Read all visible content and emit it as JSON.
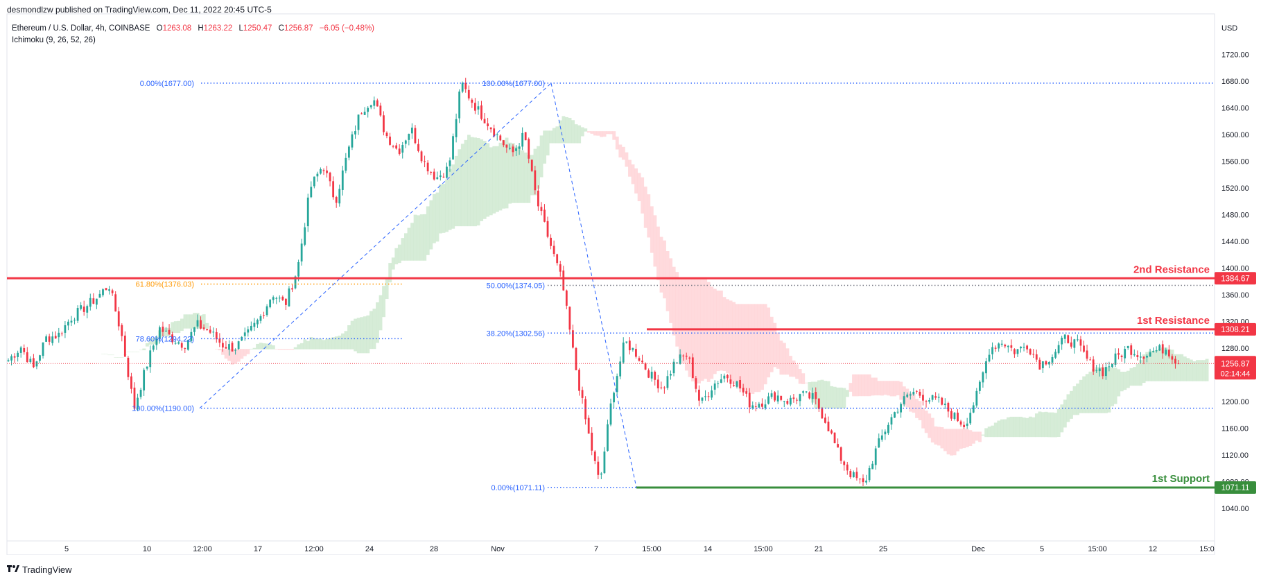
{
  "publisher_line": "desmondlzw published on TradingView.com, Dec 11, 2022 20:45 UTC-5",
  "header": {
    "symbol": "Ethereum / U.S. Dollar, 4h, COINBASE",
    "open_label": "O",
    "open": "1263.08",
    "high_label": "H",
    "high": "1263.22",
    "low_label": "L",
    "low": "1250.47",
    "close_label": "C",
    "close": "1256.87",
    "change": "−6.05 (−0.48%)"
  },
  "indicator": "Ichimoku (9, 26, 52, 26)",
  "footer_brand": "TradingView",
  "colors": {
    "up": "#26a69a",
    "down": "#f23645",
    "fib": "#2962ff",
    "fib_orange": "#ff9800",
    "resistance": "#f23645",
    "support": "#388e3c",
    "cloud_green": "#c8e6c9",
    "cloud_red": "#ffcdd2",
    "text": "#131722",
    "muted": "#787b86"
  },
  "chart_data": {
    "type": "candlestick",
    "currency_label": "USD",
    "y_axis": {
      "min": 1020,
      "max": 1750,
      "ticks": [
        "1720.00",
        "1680.00",
        "1640.00",
        "1600.00",
        "1560.00",
        "1520.00",
        "1480.00",
        "1440.00",
        "1400.00",
        "1360.00",
        "1320.00",
        "1280.00",
        "1240.00",
        "1200.00",
        "1160.00",
        "1120.00",
        "1080.00",
        "1040.00"
      ]
    },
    "x_axis": {
      "ticks": [
        "5",
        "10",
        "12:00",
        "17",
        "12:00",
        "24",
        "28",
        "Nov",
        "7",
        "15:00",
        "14",
        "15:00",
        "21",
        "25",
        "Dec",
        "5",
        "15:00",
        "12",
        "15:0"
      ]
    },
    "levels": [
      {
        "name": "2nd Resistance",
        "value": 1384.67,
        "label": "1384.67",
        "color": "#f23645"
      },
      {
        "name": "1st Resistance",
        "value": 1308.21,
        "label": "1308.21",
        "color": "#f23645"
      },
      {
        "name": "1st Support",
        "value": 1071.11,
        "label": "1071.11",
        "color": "#388e3c"
      }
    ],
    "current_price": {
      "value": 1256.87,
      "label": "1256.87",
      "countdown": "02:14:44"
    },
    "fib_labels": [
      {
        "text": "0.00%(1677.00)",
        "value": 1677.0
      },
      {
        "text": "61.80%(1376.03)",
        "value": 1376.03
      },
      {
        "text": "78.60%(1294.22)",
        "value": 1294.22
      },
      {
        "text": "100.00%(1190.00)",
        "value": 1190.0
      },
      {
        "text": "100.00%(1677.00)",
        "value": 1677.0
      },
      {
        "text": "50.00%(1374.05)",
        "value": 1374.05
      },
      {
        "text": "38.20%(1302.56)",
        "value": 1302.56
      },
      {
        "text": "0.00%(1071.11)",
        "value": 1071.11
      }
    ],
    "anchors": [
      1262,
      1282,
      1250,
      1295,
      1300,
      1326,
      1340,
      1355,
      1375,
      1300,
      1190,
      1255,
      1310,
      1295,
      1285,
      1315,
      1305,
      1285,
      1280,
      1300,
      1325,
      1362,
      1345,
      1400,
      1520,
      1555,
      1500,
      1575,
      1635,
      1655,
      1600,
      1575,
      1610,
      1560,
      1535,
      1550,
      1677,
      1645,
      1620,
      1595,
      1570,
      1600,
      1500,
      1440,
      1380,
      1260,
      1160,
      1075,
      1210,
      1290,
      1270,
      1240,
      1220,
      1260,
      1270,
      1195,
      1225,
      1240,
      1225,
      1195,
      1200,
      1210,
      1200,
      1210,
      1205,
      1170,
      1120,
      1090,
      1075,
      1130,
      1170,
      1200,
      1215,
      1205,
      1200,
      1180,
      1165,
      1210,
      1280,
      1290,
      1275,
      1285,
      1255,
      1270,
      1295,
      1285,
      1255,
      1245,
      1265,
      1280,
      1270,
      1275,
      1280,
      1257
    ]
  }
}
